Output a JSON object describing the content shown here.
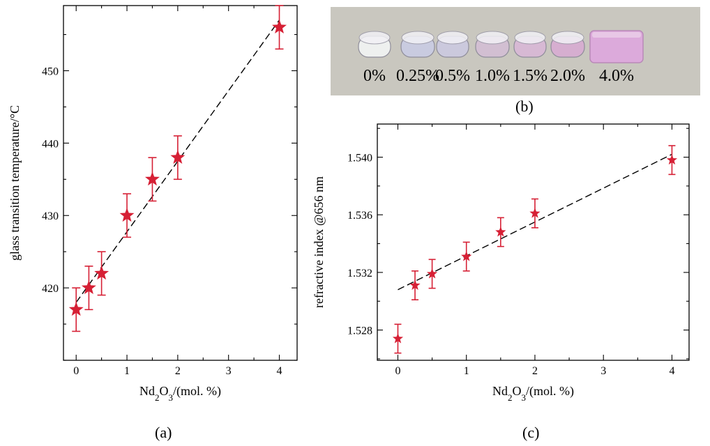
{
  "chart_data": [
    {
      "panel_label": "(a)",
      "type": "scatter",
      "xlabel": {
        "base": "Nd",
        "sub1": "2",
        "mid": "O",
        "sub2": "3",
        "rest": "/(mol. %)"
      },
      "ylabel": "glass transition temperature/°C",
      "xlim": [
        -0.25,
        4.35
      ],
      "ylim": [
        410,
        459
      ],
      "xticks": [
        0,
        1,
        2,
        3,
        4
      ],
      "yticks": [
        420,
        430,
        440,
        450
      ],
      "x": [
        0,
        0.25,
        0.5,
        1.0,
        1.5,
        2.0,
        4.0
      ],
      "y": [
        417,
        420,
        422,
        430,
        435,
        438,
        456
      ],
      "yerr": [
        3,
        3,
        3,
        3,
        3,
        3,
        3
      ],
      "fit_line": {
        "x": [
          0,
          4.0
        ],
        "y": [
          418,
          457
        ]
      },
      "marker_color": "#d62035",
      "marker": "star",
      "fit_style": "dashed"
    },
    {
      "panel_label": "(c)",
      "type": "scatter",
      "xlabel": {
        "base": "Nd",
        "sub1": "2",
        "mid": "O",
        "sub2": "3",
        "rest": "/(mol. %)"
      },
      "ylabel": "refractive index @656 nm",
      "xlim": [
        -0.3,
        4.25
      ],
      "ylim": [
        1.5259,
        1.5423
      ],
      "xticks": [
        0,
        1,
        2,
        3,
        4
      ],
      "yticks": [
        1.528,
        1.532,
        1.536,
        1.54
      ],
      "x": [
        0,
        0.25,
        0.5,
        1.0,
        1.5,
        2.0,
        4.0
      ],
      "y": [
        1.5274,
        1.5311,
        1.5319,
        1.5331,
        1.5348,
        1.5361,
        1.5398
      ],
      "yerr": [
        0.001,
        0.001,
        0.001,
        0.001,
        0.001,
        0.001,
        0.001
      ],
      "fit_line": {
        "x": [
          0,
          4.0
        ],
        "y": [
          1.5308,
          1.5402
        ]
      },
      "marker_color": "#d62035",
      "marker": "star",
      "fit_style": "dashed"
    }
  ],
  "photo": {
    "panel_label": "(b)",
    "sample_labels": [
      "0%",
      "0.25%",
      "0.5%",
      "1.0%",
      "1.5%",
      "2.0%",
      "4.0%"
    ],
    "background_color": "#c9c7bf",
    "sample_tints": [
      "#eef0ef",
      "#c9cbe0",
      "#cbc9dd",
      "#d2bfd2",
      "#d7b9d4",
      "#d6aed0",
      "#dcaadb"
    ]
  }
}
